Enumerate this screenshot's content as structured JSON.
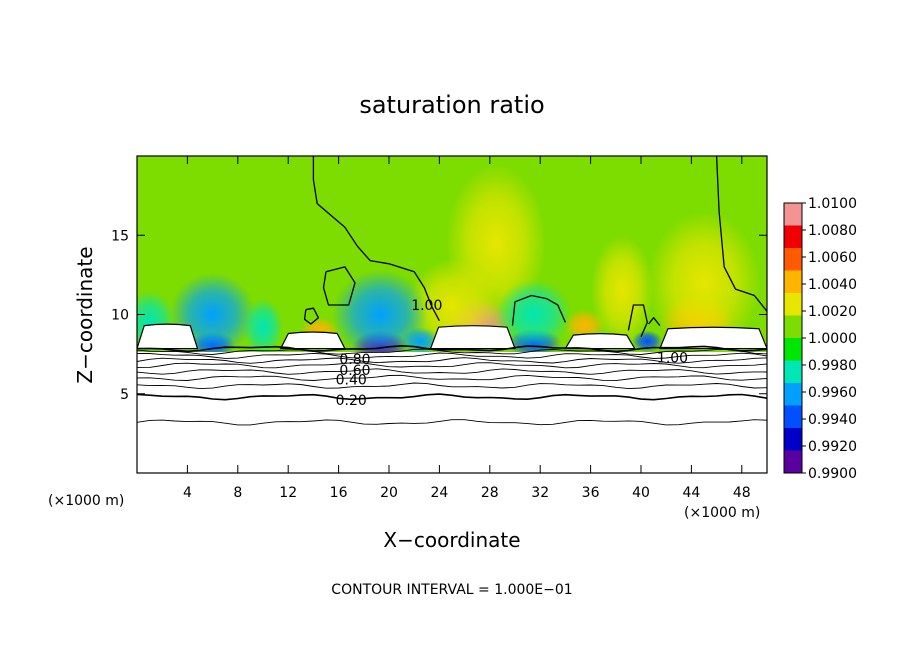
{
  "chart_data": {
    "type": "heatmap",
    "title": "saturation ratio",
    "xlabel": "X−coordinate",
    "ylabel": "Z−coordinate",
    "x_unit_left": "(×1000 m)",
    "x_unit_right": "(×1000 m)",
    "footer": "CONTOUR INTERVAL = 1.000E−01",
    "xlim": [
      0,
      50
    ],
    "ylim": [
      0,
      20
    ],
    "x_ticks": [
      4,
      8,
      12,
      16,
      20,
      24,
      28,
      32,
      36,
      40,
      44,
      48
    ],
    "x_tick_labels": [
      "4",
      "8",
      "12",
      "16",
      "20",
      "24",
      "28",
      "32",
      "36",
      "40",
      "44",
      "48"
    ],
    "y_ticks": [
      5,
      10,
      15
    ],
    "y_tick_labels": [
      "5",
      "10",
      "15"
    ],
    "colorbar": {
      "min": 0.99,
      "max": 1.01,
      "labels": [
        "1.0100",
        "1.0080",
        "1.0060",
        "1.0040",
        "1.0020",
        "1.0000",
        "0.9980",
        "0.9960",
        "0.9940",
        "0.9920",
        "0.9900"
      ],
      "colors": [
        "#f39494",
        "#f00000",
        "#ff5a00",
        "#ffb400",
        "#e6e600",
        "#7ddc00",
        "#00e600",
        "#00e6b4",
        "#00a0ff",
        "#0050ff",
        "#0000c8",
        "#5a00a0"
      ]
    },
    "background_value": 1.001,
    "contour_levels": [
      0.2,
      0.4,
      0.6,
      0.8,
      1.0
    ],
    "contour_labels": [
      {
        "text": "0.20",
        "x": 17.0,
        "y": 4.6
      },
      {
        "text": "0.40",
        "x": 17.0,
        "y": 5.9
      },
      {
        "text": "0.60",
        "x": 17.3,
        "y": 6.5
      },
      {
        "text": "0.80",
        "x": 17.3,
        "y": 7.2
      },
      {
        "text": "1.00",
        "x": 23.0,
        "y": 10.6
      },
      {
        "text": "1.00",
        "x": 42.5,
        "y": 7.3
      }
    ],
    "layer_contours": [
      {
        "level": 0.0,
        "z": 3.2
      },
      {
        "level": 0.2,
        "z": 4.8
      },
      {
        "level": 0.3,
        "z": 5.5
      },
      {
        "level": 0.4,
        "z": 6.0
      },
      {
        "level": 0.5,
        "z": 6.4
      },
      {
        "level": 0.6,
        "z": 6.8
      },
      {
        "level": 0.7,
        "z": 7.1
      },
      {
        "level": 0.8,
        "z": 7.4
      },
      {
        "level": 0.9,
        "z": 7.65
      },
      {
        "level": 1.0,
        "z": 7.85
      }
    ],
    "cloud_regions": [
      {
        "x0": 0.0,
        "x1": 4.8,
        "ztop": 9.3
      },
      {
        "x0": 11.4,
        "x1": 16.5,
        "ztop": 8.8
      },
      {
        "x0": 23.3,
        "x1": 30.0,
        "ztop": 9.2
      },
      {
        "x0": 34.0,
        "x1": 39.5,
        "ztop": 8.7
      },
      {
        "x0": 41.5,
        "x1": 50.0,
        "ztop": 9.1
      }
    ],
    "anomalies": [
      {
        "x": 27.0,
        "z": 9.3,
        "value": 1.0085,
        "rx": 2.8,
        "rz": 1.8
      },
      {
        "x": 25.0,
        "z": 10.5,
        "value": 1.0032,
        "rx": 3.5,
        "rz": 3.0
      },
      {
        "x": 28.5,
        "z": 14.5,
        "value": 1.0022,
        "rx": 4.0,
        "rz": 5.0
      },
      {
        "x": 44.5,
        "z": 9.5,
        "value": 1.0038,
        "rx": 3.0,
        "rz": 1.8
      },
      {
        "x": 45.0,
        "z": 12.0,
        "value": 1.002,
        "rx": 4.5,
        "rz": 4.5
      },
      {
        "x": 35.5,
        "z": 9.3,
        "value": 1.004,
        "rx": 1.6,
        "rz": 1.0
      },
      {
        "x": 14.5,
        "z": 9.0,
        "value": 1.0045,
        "rx": 1.5,
        "rz": 0.8
      },
      {
        "x": 38.5,
        "z": 11.5,
        "value": 1.0022,
        "rx": 2.5,
        "rz": 3.5
      },
      {
        "x": 19.3,
        "z": 8.0,
        "value": 0.9915,
        "rx": 2.2,
        "rz": 1.0
      },
      {
        "x": 19.3,
        "z": 10.0,
        "value": 0.9962,
        "rx": 3.8,
        "rz": 2.8
      },
      {
        "x": 6.0,
        "z": 8.1,
        "value": 0.9935,
        "rx": 1.8,
        "rz": 0.8
      },
      {
        "x": 6.0,
        "z": 10.0,
        "value": 0.9966,
        "rx": 3.4,
        "rz": 2.6
      },
      {
        "x": 10.0,
        "z": 9.2,
        "value": 0.9972,
        "rx": 1.6,
        "rz": 1.8
      },
      {
        "x": 1.0,
        "z": 9.5,
        "value": 0.9968,
        "rx": 2.0,
        "rz": 2.0
      },
      {
        "x": 31.5,
        "z": 8.2,
        "value": 0.995,
        "rx": 2.2,
        "rz": 0.9
      },
      {
        "x": 31.5,
        "z": 10.0,
        "value": 0.9974,
        "rx": 3.0,
        "rz": 2.2
      },
      {
        "x": 40.5,
        "z": 8.3,
        "value": 0.994,
        "rx": 1.2,
        "rz": 0.7
      },
      {
        "x": 22.5,
        "z": 8.3,
        "value": 0.9958,
        "rx": 1.5,
        "rz": 0.9
      }
    ],
    "unity_contours": [
      [
        [
          14.0,
          20.0
        ],
        [
          14.0,
          18.5
        ],
        [
          14.3,
          17.0
        ],
        [
          16.5,
          15.5
        ],
        [
          17.5,
          14.3
        ],
        [
          18.5,
          13.4
        ],
        [
          20.0,
          13.2
        ],
        [
          22.0,
          12.7
        ],
        [
          22.8,
          11.7
        ],
        [
          23.4,
          10.5
        ],
        [
          24.0,
          9.6
        ]
      ],
      [
        [
          15.0,
          12.7
        ],
        [
          16.5,
          13.0
        ],
        [
          17.3,
          12.0
        ],
        [
          16.8,
          10.6
        ],
        [
          15.2,
          10.6
        ],
        [
          14.8,
          11.7
        ],
        [
          15.0,
          12.7
        ]
      ],
      [
        [
          13.4,
          10.3
        ],
        [
          14.0,
          10.4
        ],
        [
          14.4,
          9.8
        ],
        [
          13.8,
          9.4
        ],
        [
          13.3,
          9.7
        ],
        [
          13.4,
          10.3
        ]
      ],
      [
        [
          29.8,
          9.3
        ],
        [
          30.0,
          10.8
        ],
        [
          31.3,
          11.2
        ],
        [
          32.5,
          11.0
        ],
        [
          33.4,
          10.6
        ],
        [
          34.0,
          9.5
        ]
      ],
      [
        [
          39.0,
          9.0
        ],
        [
          39.4,
          10.6
        ],
        [
          40.2,
          10.6
        ],
        [
          40.5,
          9.5
        ],
        [
          40.0,
          8.6
        ]
      ],
      [
        [
          40.6,
          9.4
        ],
        [
          41.0,
          9.8
        ],
        [
          41.5,
          9.3
        ]
      ],
      [
        [
          46.0,
          20.0
        ],
        [
          46.2,
          16.5
        ],
        [
          46.6,
          13.0
        ],
        [
          47.5,
          11.6
        ],
        [
          49.0,
          11.2
        ],
        [
          50.0,
          10.2
        ]
      ]
    ]
  }
}
